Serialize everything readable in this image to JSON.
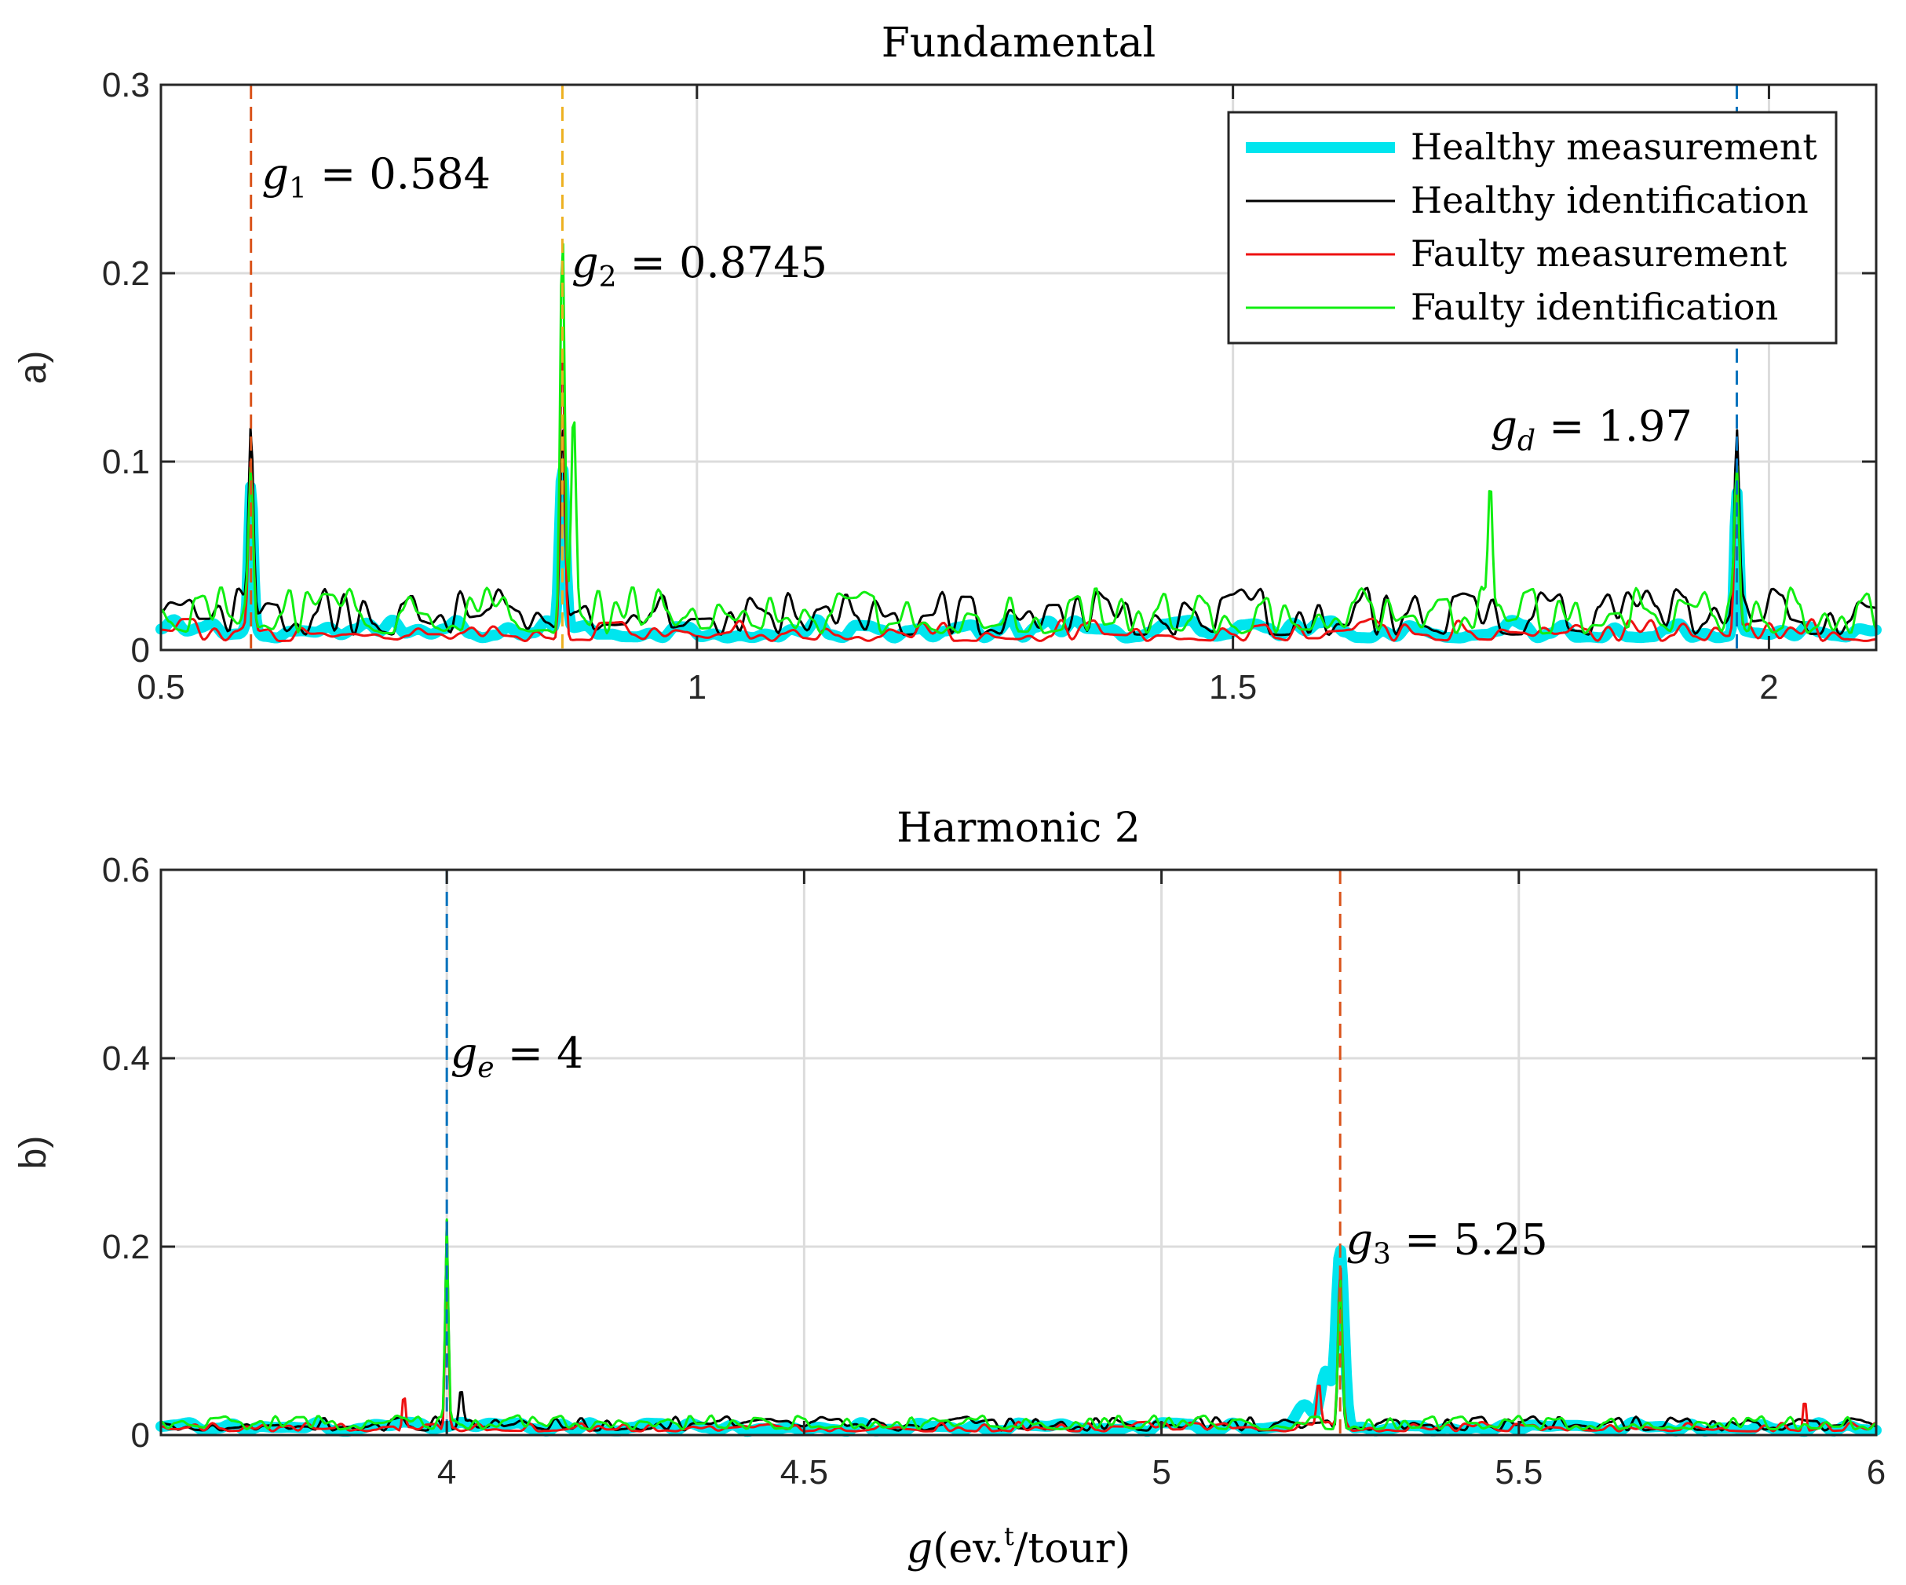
{
  "colors": {
    "healthy_measurement": "#00e5ee",
    "healthy_identification": "#000000",
    "faulty_measurement": "#ee1111",
    "faulty_identification": "#11ee11",
    "marker_orange_red": "#d9531a",
    "marker_yellow": "#edb120",
    "marker_blue": "#0072bd"
  },
  "chart_data": [
    {
      "type": "line",
      "panel_label": "a)",
      "title": "Fundamental",
      "xlabel": "",
      "ylabel": "a)",
      "xlim": [
        0.5,
        2.1
      ],
      "ylim": [
        0,
        0.3
      ],
      "xticks": [
        0.5,
        1,
        1.5,
        2
      ],
      "xtick_labels": [
        "0.5",
        "1",
        "1.5",
        "2"
      ],
      "yticks": [
        0,
        0.1,
        0.2,
        0.3
      ],
      "ytick_labels": [
        "0",
        "0.1",
        "0.2",
        "0.3"
      ],
      "grid": true,
      "legend_position": "top-right",
      "legend": [
        "Healthy measurement",
        "Healthy identification",
        "Faulty measurement",
        "Faulty identification"
      ],
      "markers": [
        {
          "x": 0.584,
          "color": "#d9531a",
          "label": "g1 = 0.584",
          "sym": "g",
          "sub": "1",
          "rest": " = 0.584",
          "label_x": 0.594,
          "label_y": 0.245
        },
        {
          "x": 0.8745,
          "color": "#edb120",
          "label": "g2 = 0.8745",
          "sym": "g",
          "sub": "2",
          "rest": " = 0.8745",
          "label_x": 0.883,
          "label_y": 0.198
        },
        {
          "x": 1.97,
          "color": "#0072bd",
          "label": "gd = 1.97",
          "sym": "g",
          "sub": "d",
          "rest": " = 1.97",
          "label_x": 1.74,
          "label_y": 0.111
        }
      ],
      "series": [
        {
          "name": "Healthy measurement",
          "key": "healthy_measurement",
          "width": 14,
          "base": 0.016,
          "noise": 0.01,
          "period": 0.012,
          "peaks": [
            {
              "x": 0.584,
              "h": 0.075,
              "w": 0.003
            },
            {
              "x": 0.8745,
              "h": 0.09,
              "w": 0.004
            },
            {
              "x": 1.97,
              "h": 0.075,
              "w": 0.003
            }
          ]
        },
        {
          "name": "Healthy identification",
          "key": "healthy_identification",
          "width": 3,
          "base": 0.02,
          "noise": 0.025,
          "period": 0.009,
          "peaks": [
            {
              "x": 0.584,
              "h": 0.095,
              "w": 0.003
            },
            {
              "x": 0.8745,
              "h": 0.105,
              "w": 0.003
            },
            {
              "x": 1.97,
              "h": 0.095,
              "w": 0.003
            }
          ]
        },
        {
          "name": "Faulty measurement",
          "key": "faulty_measurement",
          "width": 3,
          "base": 0.012,
          "noise": 0.012,
          "period": 0.01,
          "peaks": [
            {
              "x": 0.584,
              "h": 0.09,
              "w": 0.003
            },
            {
              "x": 0.8745,
              "h": 0.16,
              "w": 0.003
            },
            {
              "x": 1.97,
              "h": 0.092,
              "w": 0.003
            }
          ]
        },
        {
          "name": "Faulty identification",
          "key": "faulty_identification",
          "width": 3,
          "base": 0.022,
          "noise": 0.025,
          "period": 0.008,
          "peaks": [
            {
              "x": 0.584,
              "h": 0.08,
              "w": 0.003
            },
            {
              "x": 0.8745,
              "h": 0.21,
              "w": 0.003
            },
            {
              "x": 0.885,
              "h": 0.1,
              "w": 0.003
            },
            {
              "x": 1.74,
              "h": 0.078,
              "w": 0.003
            },
            {
              "x": 1.97,
              "h": 0.082,
              "w": 0.003
            }
          ]
        }
      ]
    },
    {
      "type": "line",
      "panel_label": "b)",
      "title": "Harmonic 2",
      "xlabel": "g(ev.t/tour)",
      "ylabel": "b)",
      "xlim": [
        3.6,
        6
      ],
      "ylim": [
        0,
        0.6
      ],
      "xticks": [
        4,
        4.5,
        5,
        5.5,
        6
      ],
      "xtick_labels": [
        "4",
        "4.5",
        "5",
        "5.5",
        "6"
      ],
      "yticks": [
        0,
        0.2,
        0.4,
        0.6
      ],
      "ytick_labels": [
        "0",
        "0.2",
        "0.4",
        "0.6"
      ],
      "grid": true,
      "markers": [
        {
          "x": 4,
          "color": "#0072bd",
          "label": "ge = 4",
          "sym": "g",
          "sub": "e",
          "rest": " = 4",
          "label_x": 4.005,
          "label_y": 0.39
        },
        {
          "x": 5.25,
          "color": "#d9531a",
          "label": "g3 = 5.25",
          "sym": "g",
          "sub": "3",
          "rest": " = 5.25",
          "label_x": 5.258,
          "label_y": 0.192
        }
      ],
      "series": [
        {
          "name": "Healthy measurement",
          "key": "healthy_measurement",
          "width": 14,
          "base": 0.01,
          "noise": 0.01,
          "period": 0.02,
          "peaks": [
            {
              "x": 5.25,
              "h": 0.19,
              "w": 0.008
            },
            {
              "x": 5.23,
              "h": 0.06,
              "w": 0.01
            },
            {
              "x": 5.2,
              "h": 0.02,
              "w": 0.02
            }
          ]
        },
        {
          "name": "Healthy identification",
          "key": "healthy_identification",
          "width": 3,
          "base": 0.012,
          "noise": 0.015,
          "period": 0.012,
          "peaks": [
            {
              "x": 4,
              "h": 0.22,
              "w": 0.003
            },
            {
              "x": 4.02,
              "h": 0.04,
              "w": 0.004
            },
            {
              "x": 5.25,
              "h": 0.16,
              "w": 0.004
            }
          ]
        },
        {
          "name": "Faulty measurement",
          "key": "faulty_measurement",
          "width": 3,
          "base": 0.01,
          "noise": 0.01,
          "period": 0.012,
          "peaks": [
            {
              "x": 3.94,
              "h": 0.04,
              "w": 0.003
            },
            {
              "x": 4,
              "h": 0.2,
              "w": 0.003
            },
            {
              "x": 5.25,
              "h": 0.17,
              "w": 0.004
            },
            {
              "x": 5.22,
              "h": 0.05,
              "w": 0.004
            },
            {
              "x": 5.9,
              "h": 0.035,
              "w": 0.003
            }
          ]
        },
        {
          "name": "Faulty identification",
          "key": "faulty_identification",
          "width": 3,
          "base": 0.015,
          "noise": 0.015,
          "period": 0.01,
          "peaks": [
            {
              "x": 4,
              "h": 0.21,
              "w": 0.003
            },
            {
              "x": 5.25,
              "h": 0.15,
              "w": 0.004
            }
          ]
        }
      ]
    }
  ],
  "axis_label_parts": {
    "sym": "g",
    "open": "(ev.",
    "sup": "t",
    "close": "/tour)"
  }
}
